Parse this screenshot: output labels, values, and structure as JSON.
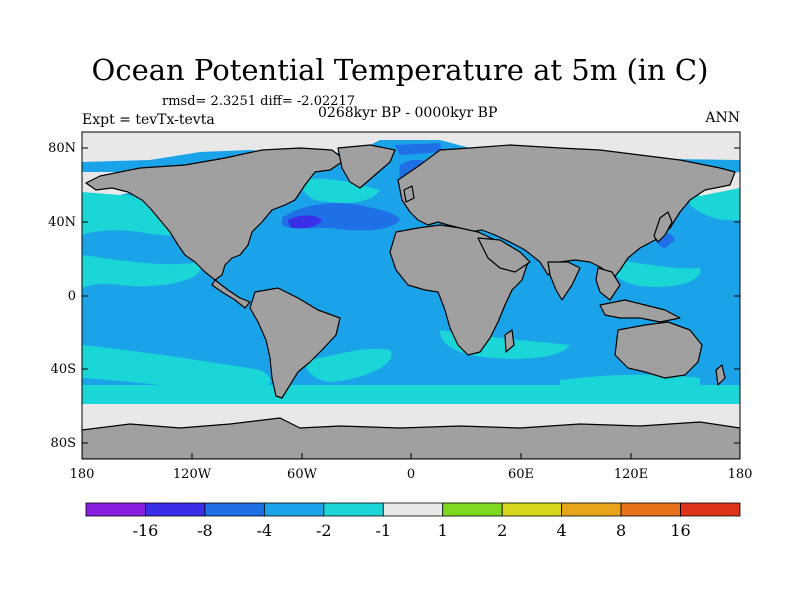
{
  "title": "Ocean Potential Temperature at 5m (in C)",
  "stats": "rmsd= 2.3251  diff= -2.02217",
  "expt": "Expt = tevTx-tevta",
  "period": "0268kyr BP - 0000kyr BP",
  "season": "ANN",
  "lat_labels": [
    "80N",
    "40N",
    "0",
    "40S",
    "80S"
  ],
  "lon_labels": [
    "180",
    "120W",
    "60W",
    "0",
    "60E",
    "120E",
    "180"
  ],
  "colorbar": {
    "labels": [
      "-16",
      "-8",
      "-4",
      "-2",
      "-1",
      "1",
      "2",
      "4",
      "8",
      "16"
    ],
    "colors": [
      "#8a1fe0",
      "#3a2ee8",
      "#1f6fe6",
      "#1aa3e8",
      "#1ad6d6",
      "#e8e8e8",
      "#7ed81f",
      "#d6d61a",
      "#e6a41a",
      "#e6701a",
      "#e0341a"
    ]
  },
  "colors": {
    "land": "#a0a0a0",
    "ocean_base": "#1aa3e8",
    "ocean_light": "#1ad6d6",
    "ocean_dark": "#1f6fe6",
    "ice": "#e8e8e8"
  }
}
